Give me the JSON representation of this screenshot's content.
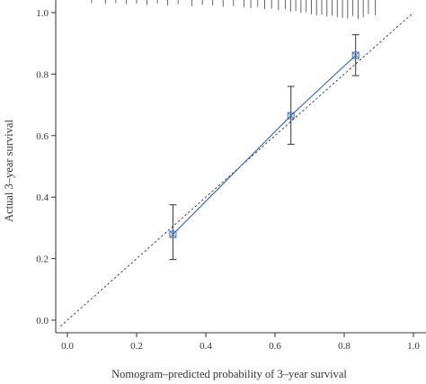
{
  "chart_data": {
    "type": "scatter",
    "title": "",
    "xlabel": "Nomogram–predicted probability of 3–year survival",
    "ylabel": "Actual 3–year survival",
    "xlim": [
      -0.02,
      1.02
    ],
    "ylim": [
      -0.04,
      1.04
    ],
    "xticks": [
      "0.0",
      "0.2",
      "0.4",
      "0.6",
      "0.8",
      "1.0"
    ],
    "yticks": [
      "0.0",
      "0.2",
      "0.4",
      "0.6",
      "0.8",
      "1.0"
    ],
    "grid": false,
    "series": [
      {
        "style": "calibration-line",
        "color": "#3b6fc4",
        "points": [
          {
            "x": 0.305,
            "y": 0.279,
            "lower": 0.197,
            "upper": 0.375
          },
          {
            "x": 0.646,
            "y": 0.665,
            "lower": 0.572,
            "upper": 0.76
          },
          {
            "x": 0.833,
            "y": 0.861,
            "lower": 0.795,
            "upper": 0.928
          }
        ]
      }
    ],
    "reference_line": {
      "style": "dashed",
      "color": "#333333",
      "from": [
        -0.02,
        -0.02
      ],
      "to": [
        1.0,
        1.0
      ]
    },
    "rug": {
      "position": "top",
      "color": "#555555",
      "x": [
        0.07,
        0.11,
        0.14,
        0.17,
        0.2,
        0.23,
        0.26,
        0.29,
        0.32,
        0.36,
        0.39,
        0.42,
        0.45,
        0.48,
        0.51,
        0.53,
        0.55,
        0.57,
        0.59,
        0.61,
        0.63,
        0.645,
        0.66,
        0.675,
        0.69,
        0.705,
        0.72,
        0.735,
        0.75,
        0.765,
        0.78,
        0.795,
        0.81,
        0.825,
        0.84,
        0.855,
        0.87,
        0.89
      ],
      "heights": [
        0.01,
        0.012,
        0.01,
        0.014,
        0.012,
        0.016,
        0.012,
        0.018,
        0.014,
        0.02,
        0.016,
        0.018,
        0.022,
        0.02,
        0.024,
        0.026,
        0.022,
        0.03,
        0.028,
        0.034,
        0.03,
        0.038,
        0.036,
        0.042,
        0.04,
        0.046,
        0.05,
        0.048,
        0.054,
        0.05,
        0.056,
        0.058,
        0.06,
        0.052,
        0.062,
        0.056,
        0.046,
        0.05
      ]
    }
  }
}
